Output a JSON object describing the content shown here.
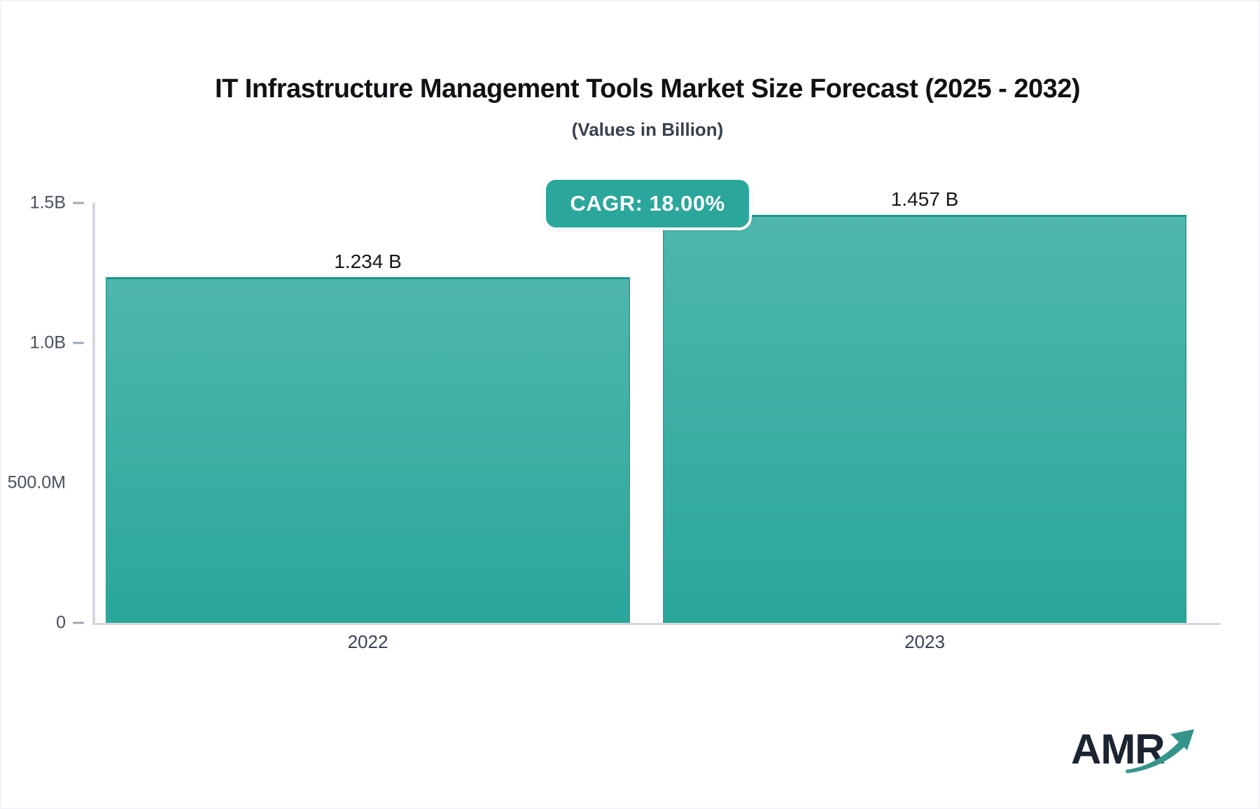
{
  "chart_data": {
    "type": "bar",
    "title": "IT Infrastructure Management Tools Market Size Forecast (2025 - 2032)",
    "subtitle": "(Values in Billion)",
    "cagr_label": "CAGR: 18.00%",
    "categories": [
      "2022",
      "2023"
    ],
    "values": [
      1.234,
      1.457
    ],
    "value_labels": [
      "1.234 B",
      "1.457 B"
    ],
    "unit": "Billion USD",
    "ylim": [
      0,
      1.5
    ],
    "ymax": 1.5,
    "y_ticks": [
      {
        "label": "1.5B",
        "value": 1.5,
        "tick": true
      },
      {
        "label": "1.0B",
        "value": 1.0,
        "tick": true
      },
      {
        "label": "500.0M",
        "value": 0.5,
        "tick": false
      },
      {
        "label": "0",
        "value": 0.0,
        "tick": true
      }
    ],
    "grid": false,
    "legend_position": "none",
    "colors": {
      "bar_gradient_top": "#4FB7AB",
      "bar_gradient_bottom": "#2AA69B",
      "bar_edge_top": "#1E968B",
      "bar_edge_side": "#35A195",
      "badge_bg": "#2AA69B",
      "axis_line": "#D4D7DD",
      "tick_dash": "#9EA6B2"
    }
  },
  "logo": {
    "text": "AMR",
    "text_color": "#1B2430",
    "arrow_color": "#35948C"
  }
}
